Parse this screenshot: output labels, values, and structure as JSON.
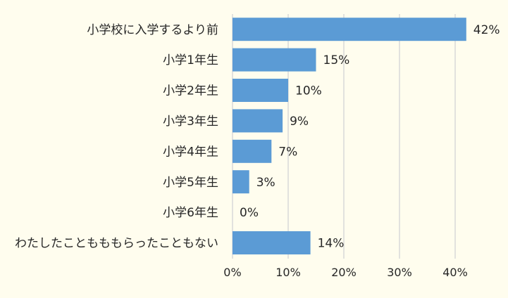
{
  "colors": {
    "background": "#fffdee",
    "bar": "#5b9bd5",
    "grid": "#d9d9d9",
    "text": "#262626"
  },
  "chart_data": {
    "type": "bar",
    "orientation": "horizontal",
    "title": "",
    "xlabel": "",
    "ylabel": "",
    "categories": [
      "小学校に入学するより前",
      "小学1年生",
      "小学2年生",
      "小学3年生",
      "小学4年生",
      "小学5年生",
      "小学6年生",
      "わたしたこともももらったこともない"
    ],
    "values": [
      42,
      15,
      10,
      9,
      7,
      3,
      0,
      14
    ],
    "data_labels": [
      "42%",
      "15%",
      "10%",
      "9%",
      "7%",
      "3%",
      "0%",
      "14%"
    ],
    "xlim": [
      0,
      40
    ],
    "xticks": [
      0,
      10,
      20,
      30,
      40
    ],
    "xtick_labels": [
      "0%",
      "10%",
      "20%",
      "30%",
      "40%"
    ],
    "grid": true,
    "legend": "none"
  }
}
